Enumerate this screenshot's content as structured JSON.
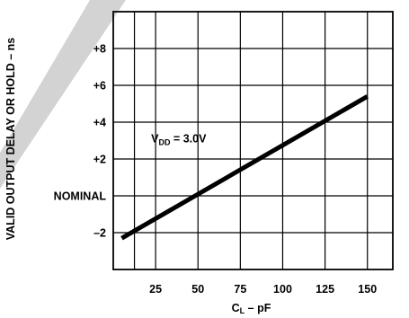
{
  "chart_data": {
    "type": "line",
    "xlabel": "C",
    "xlabel_sub": "L",
    "xlabel_suffix": " – pF",
    "ylabel": "VALID OUTPUT DELAY OR HOLD – ns",
    "xlim": [
      0,
      165
    ],
    "ylim": [
      -4,
      10
    ],
    "x_ticks": [
      {
        "value": 25,
        "label": "25"
      },
      {
        "value": 50,
        "label": "50"
      },
      {
        "value": 75,
        "label": "75"
      },
      {
        "value": 100,
        "label": "100"
      },
      {
        "value": 125,
        "label": "125"
      },
      {
        "value": 150,
        "label": "150"
      }
    ],
    "x_grid": [
      12.5,
      25,
      50,
      75,
      100,
      125,
      150
    ],
    "y_ticks": [
      {
        "value": -2,
        "label": "–2"
      },
      {
        "value": 0,
        "label": "NOMINAL"
      },
      {
        "value": 2,
        "label": "+2"
      },
      {
        "value": 4,
        "label": "+4"
      },
      {
        "value": 6,
        "label": "+6"
      },
      {
        "value": 8,
        "label": "+8"
      }
    ],
    "y_grid": [
      -2,
      0,
      2,
      4,
      6,
      8
    ],
    "grid": true,
    "series": [
      {
        "x": [
          5,
          150
        ],
        "y": [
          -2.3,
          5.4
        ]
      }
    ],
    "annotations": [
      {
        "text": "V",
        "sub": "DD",
        "suffix": " = 3.0V",
        "x": 25,
        "y": 3.1
      }
    ],
    "line_color": "#000000",
    "stripe_color": "#d3d3d3"
  }
}
